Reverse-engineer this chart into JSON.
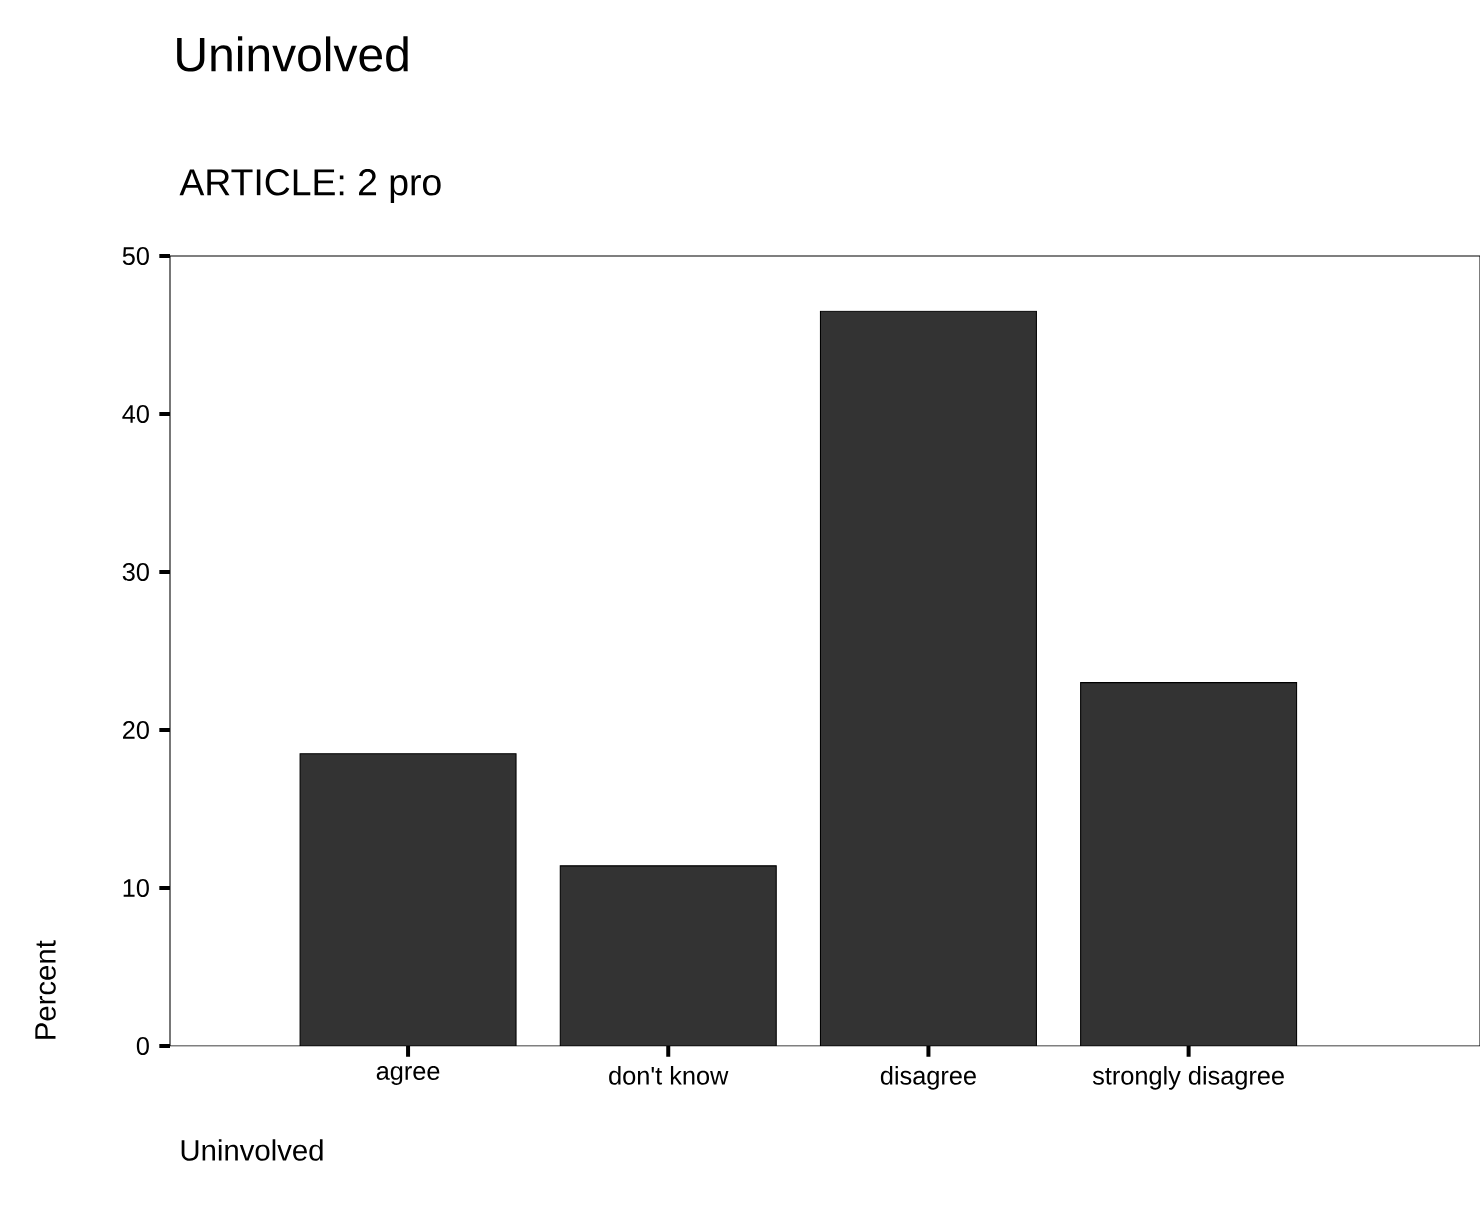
{
  "chart_data": {
    "type": "bar",
    "title": "Uninvolved",
    "subtitle": "ARTICLE:        2   pro",
    "xlabel": "Uninvolved",
    "ylabel": "Percent",
    "categories": [
      "agree",
      "don't know",
      "disagree",
      "strongly disagree"
    ],
    "values": [
      18.5,
      11.4,
      46.5,
      23.0
    ],
    "color": "#333333",
    "ylim": [
      0,
      50
    ],
    "yticks": [
      0,
      10,
      20,
      30,
      40,
      50
    ]
  }
}
